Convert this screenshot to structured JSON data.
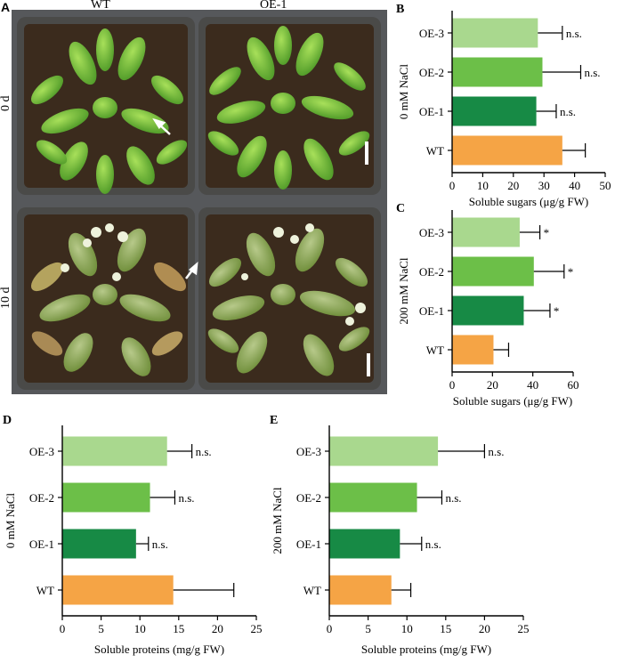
{
  "panel_a": {
    "letter": "A",
    "col_labels": [
      "WT",
      "OE-1"
    ],
    "row_labels": [
      "0 d",
      "10 d"
    ]
  },
  "colors": {
    "WT": "#F5A445",
    "OE-1": "#178A45",
    "OE-2": "#6CBF48",
    "OE-3": "#A9D88E",
    "axis": "#000000",
    "soil": "#3a2a1c",
    "pot": "#4a4a48",
    "tray": "#55575a"
  },
  "chart_data": [
    {
      "id": "B",
      "letter": "B",
      "type": "bar",
      "orientation": "horizontal",
      "categories": [
        "OE-3",
        "OE-2",
        "OE-1",
        "WT"
      ],
      "values": [
        28,
        29.5,
        27.5,
        36
      ],
      "errors": [
        8,
        12.5,
        6.5,
        7.5
      ],
      "annotations": [
        "n.s.",
        "n.s.",
        "n.s.",
        ""
      ],
      "xlabel": "Soluble sugars (μg/g FW)",
      "ylabel": "0 mM NaCl",
      "xlim": [
        0,
        50
      ],
      "xticks": [
        0,
        10,
        20,
        30,
        40,
        50
      ],
      "grid": false,
      "legend": "none"
    },
    {
      "id": "C",
      "letter": "C",
      "type": "bar",
      "orientation": "horizontal",
      "categories": [
        "OE-3",
        "OE-2",
        "OE-1",
        "WT"
      ],
      "values": [
        33.5,
        40.5,
        35.5,
        20.5
      ],
      "errors": [
        10,
        15,
        13,
        7.5
      ],
      "annotations": [
        "*",
        "*",
        "*",
        ""
      ],
      "xlabel": "Soluble sugars (μg/g FW)",
      "ylabel": "200 mM NaCl",
      "xlim": [
        0,
        60
      ],
      "xticks": [
        0,
        20,
        40,
        60
      ],
      "grid": false,
      "legend": "none"
    },
    {
      "id": "D",
      "letter": "D",
      "type": "bar",
      "orientation": "horizontal",
      "categories": [
        "OE-3",
        "OE-2",
        "OE-1",
        "WT"
      ],
      "values": [
        13.5,
        11.3,
        9.5,
        14.3
      ],
      "errors": [
        3.2,
        3.2,
        1.6,
        7.8
      ],
      "annotations": [
        "n.s.",
        "n.s.",
        "n.s.",
        ""
      ],
      "xlabel": "Soluble proteins (mg/g FW)",
      "ylabel": "0 mM NaCl",
      "xlim": [
        0,
        25
      ],
      "xticks": [
        0,
        5,
        10,
        15,
        20,
        25
      ],
      "grid": false,
      "legend": "none"
    },
    {
      "id": "E",
      "letter": "E",
      "type": "bar",
      "orientation": "horizontal",
      "categories": [
        "OE-3",
        "OE-2",
        "OE-1",
        "WT"
      ],
      "values": [
        14,
        11.3,
        9.1,
        8
      ],
      "errors": [
        6,
        3.2,
        2.8,
        2.5
      ],
      "annotations": [
        "n.s.",
        "n.s.",
        "n.s.",
        ""
      ],
      "xlabel": "Soluble proteins (mg/g FW)",
      "ylabel": "200 mM NaCl",
      "xlim": [
        0,
        25
      ],
      "xticks": [
        0,
        5,
        10,
        15,
        20,
        25
      ],
      "grid": false,
      "legend": "none"
    }
  ]
}
